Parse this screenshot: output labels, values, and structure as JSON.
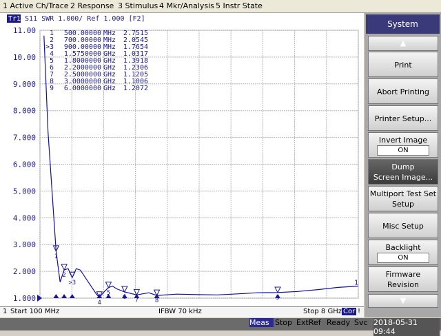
{
  "menu": [
    "1 Active Ch/Trace",
    "2 Response",
    "3 Stimulus",
    "4 Mkr/Analysis",
    "5 Instr State"
  ],
  "trace_header": {
    "trace": "Tr1",
    "text": "S11 SWR 1.000/ Ref 1.000 [F2]"
  },
  "chart_data": {
    "type": "line",
    "color": "#1010a0",
    "grid": true,
    "xlim": [
      100,
      8000
    ],
    "xticks": [
      100,
      890,
      1680,
      2470,
      3260,
      4050,
      4840,
      5630,
      6420,
      7210,
      8000
    ],
    "ylim": [
      1,
      11
    ],
    "yticks": [
      {
        "value": 11,
        "label": "11.00"
      },
      {
        "value": 10,
        "label": "10.00"
      },
      {
        "value": 9,
        "label": "9.000"
      },
      {
        "value": 8,
        "label": "8.000"
      },
      {
        "value": 7,
        "label": "7.000"
      },
      {
        "value": 6,
        "label": "6.000"
      },
      {
        "value": 5,
        "label": "5.000"
      },
      {
        "value": 4,
        "label": "4.000"
      },
      {
        "value": 3,
        "label": "3.000"
      },
      {
        "value": 2,
        "label": "2.000"
      },
      {
        "value": 1,
        "label": "1.000"
      }
    ],
    "series": [
      {
        "x": [
          200,
          300,
          400,
          500,
          600,
          700,
          800,
          900,
          1000,
          1100,
          1300,
          1500,
          1575,
          1700,
          1800,
          1900,
          2000,
          2200,
          2500,
          2800,
          3000,
          3500,
          4000,
          4500,
          5000,
          5500,
          6000,
          6500,
          7000,
          7500,
          8000
        ],
        "values": [
          10.8,
          7.2,
          5.0,
          2.7515,
          1.6,
          2.0545,
          2.1,
          1.7654,
          2.1,
          2.05,
          1.6,
          1.15,
          1.0317,
          1.25,
          1.3918,
          1.45,
          1.35,
          1.2306,
          1.1205,
          1.2,
          1.1006,
          1.15,
          1.13,
          1.12,
          1.16,
          1.2,
          1.2072,
          1.25,
          1.32,
          1.4,
          1.45
        ]
      }
    ],
    "markers": [
      {
        "label": "1",
        "frequency": {
          "value": 500,
          "label": "500.00000"
        },
        "unit": "MHz",
        "value": 2.7515
      },
      {
        "label": "2",
        "frequency": {
          "value": 700,
          "label": "700.00000"
        },
        "unit": "MHz",
        "value": 2.0545
      },
      {
        "label": ">3",
        "frequency": {
          "value": 900,
          "label": "900.00000"
        },
        "unit": "MHz",
        "value": 1.7654
      },
      {
        "label": "4",
        "frequency": {
          "value": 1575,
          "label": "1.5750000"
        },
        "unit": "GHz",
        "value": 1.0317
      },
      {
        "label": "5",
        "frequency": {
          "value": 1800,
          "label": "1.8000000"
        },
        "unit": "GHz",
        "value": 1.3918
      },
      {
        "label": "6",
        "frequency": {
          "value": 2200,
          "label": "2.2000000"
        },
        "unit": "GHz",
        "value": 1.2306
      },
      {
        "label": "7",
        "frequency": {
          "value": 2500,
          "label": "2.5000000"
        },
        "unit": "GHz",
        "value": 1.1205
      },
      {
        "label": "8",
        "frequency": {
          "value": 3000,
          "label": "3.0000000"
        },
        "unit": "GHz",
        "value": 1.1006
      },
      {
        "label": "9",
        "frequency": {
          "value": 6000,
          "label": "6.0000000"
        },
        "unit": "GHz",
        "value": 1.2072
      }
    ],
    "trace_end_label": "1"
  },
  "info_bar": {
    "channel": "1",
    "start": "Start 100 MHz",
    "ifbw": "IFBW 70 kHz",
    "stop": "Stop 8 GHz",
    "cor": "Cor",
    "flag": "!"
  },
  "softkeys": {
    "title": "System",
    "keys": [
      {
        "lines": [
          "Print"
        ]
      },
      {
        "lines": [
          "Abort Printing"
        ]
      },
      {
        "lines": [
          "Printer Setup..."
        ]
      },
      {
        "lines": [
          "Invert Image"
        ],
        "state": "ON"
      },
      {
        "lines": [
          "Dump",
          "Screen Image..."
        ]
      },
      {
        "lines": [
          "Multiport Test Set",
          "Setup"
        ]
      },
      {
        "lines": [
          "Misc Setup"
        ]
      },
      {
        "lines": [
          "Backlight"
        ],
        "state": "ON"
      },
      {
        "lines": [
          "Firmware",
          "Revision"
        ]
      }
    ]
  },
  "status_bar": [
    "Meas",
    "Stop",
    "ExtRef",
    "Ready",
    "Svc",
    "2018-05-31 09:44"
  ]
}
